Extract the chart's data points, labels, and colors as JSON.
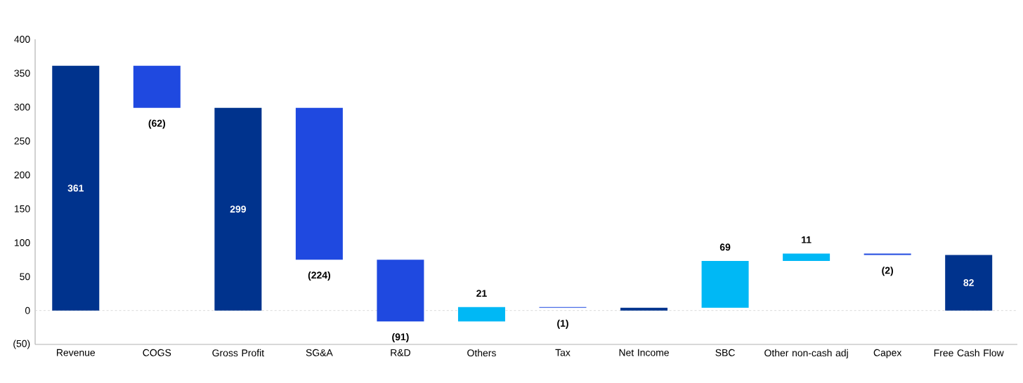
{
  "chart_data": {
    "type": "bar",
    "categories": [
      "Revenue",
      "COGS",
      "Gross Profit",
      "SG&A",
      "R&D",
      "Others",
      "Tax",
      "Net Income",
      "SBC",
      "Other non-cash adj",
      "Capex",
      "Free Cash Flow"
    ],
    "values": [
      361,
      -62,
      299,
      -224,
      -91,
      21,
      -1,
      4,
      69,
      11,
      -2,
      82
    ],
    "base": [
      0,
      361,
      0,
      299,
      75,
      -16,
      5,
      0,
      4,
      73,
      84,
      0
    ],
    "colors": [
      "#00338d",
      "#1f49e0",
      "#00338d",
      "#1f49e0",
      "#1f49e0",
      "#00b8f5",
      "#1f49e0",
      "#00338d",
      "#00b8f5",
      "#00b8f5",
      "#1f49e0",
      "#00338d"
    ],
    "value_labels": [
      "361",
      "(62)",
      "299",
      "(224)",
      "(91)",
      "21",
      "(1)",
      null,
      "69",
      "11",
      "(2)",
      "82"
    ],
    "ylim": [
      -50,
      400
    ],
    "yticks": [
      {
        "value": -50,
        "label": "(50)"
      },
      0,
      50,
      100,
      150,
      200,
      250,
      300,
      350,
      400
    ],
    "ref_lines": [
      {
        "axis": "y",
        "value": 0,
        "color": "#d0d0d0",
        "line_style": "dashed"
      }
    ],
    "grid": false
  }
}
